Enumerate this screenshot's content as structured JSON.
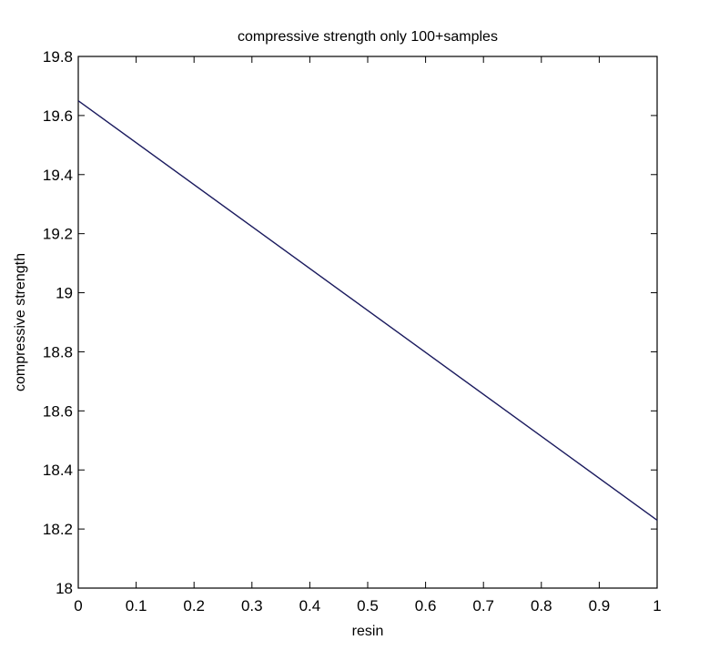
{
  "chart_data": {
    "type": "line",
    "title": "compressive strength only 100+samples",
    "xlabel": "resin",
    "ylabel": "compressive strength",
    "xlim": [
      0,
      1
    ],
    "ylim": [
      18,
      19.8
    ],
    "x_ticks": [
      "0",
      "0.1",
      "0.2",
      "0.3",
      "0.4",
      "0.5",
      "0.6",
      "0.7",
      "0.8",
      "0.9",
      "1"
    ],
    "y_ticks": [
      "18",
      "18.2",
      "18.4",
      "18.6",
      "18.8",
      "19",
      "19.2",
      "19.4",
      "19.6",
      "19.8"
    ],
    "grid": false,
    "legend": "none",
    "colors": {
      "line": "#1a1a5e",
      "axes": "#000000",
      "background": "#ffffff"
    },
    "series": [
      {
        "x": [
          0,
          1
        ],
        "values": [
          19.65,
          18.23
        ]
      }
    ]
  }
}
